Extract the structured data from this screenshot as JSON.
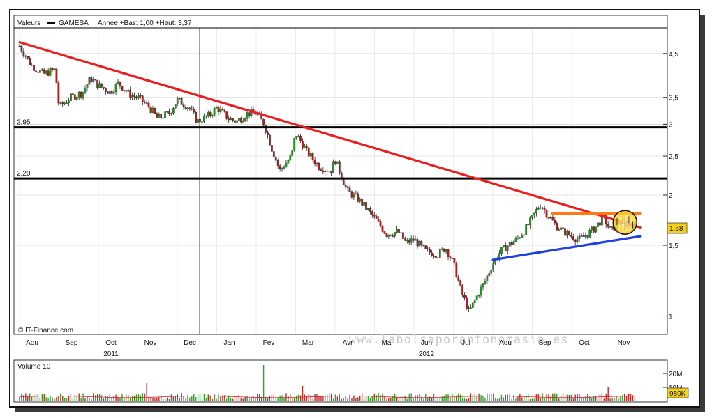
{
  "chart_data": [
    {
      "type": "candlestick",
      "legend": {
        "prefix": "Valeurs",
        "series_name": "GAMESA",
        "stats": "Année +Bas: 1,00 +Haut: 3,37"
      },
      "source": "© IT-Finance.com",
      "watermark": "www.labolsaporantonomasia.es",
      "y_scale": "log",
      "ylim": [
        0.9,
        5.6
      ],
      "y_ticks": [
        {
          "label": "4,5",
          "value": 4.5
        },
        {
          "label": "3,5",
          "value": 3.5
        },
        {
          "label": "3",
          "value": 3.0
        },
        {
          "label": "2,5",
          "value": 2.5
        },
        {
          "label": "2",
          "value": 2.0
        },
        {
          "label": "1,5",
          "value": 1.5
        },
        {
          "label": "1",
          "value": 1.0
        }
      ],
      "months": [
        "Aou",
        "Sep",
        "Oct",
        "Nov",
        "Dec",
        "Jan",
        "Fev",
        "Mar",
        "Avr",
        "Mai",
        "Jun",
        "Jul",
        "Aou",
        "Sep",
        "Oct",
        "Nov"
      ],
      "years": [
        {
          "label": "2011",
          "month_index": 2
        },
        {
          "label": "2012",
          "month_index": 10
        }
      ],
      "last_price": {
        "label": "1,68",
        "value": 1.68
      },
      "levels": [
        {
          "label": "2,95",
          "value": 2.95,
          "color": "#000000"
        },
        {
          "label": "2,20",
          "value": 2.2,
          "color": "#000000"
        }
      ],
      "trendlines": [
        {
          "name": "resistance",
          "color": "#ee1c1c",
          "from": {
            "month": 0.0,
            "value": 4.8
          },
          "to": {
            "month": 15.75,
            "value": 1.66
          }
        },
        {
          "name": "support",
          "color": "#1f3fe0",
          "from": {
            "month": 12.0,
            "value": 1.38
          },
          "to": {
            "month": 15.75,
            "value": 1.58
          }
        },
        {
          "name": "range-top",
          "color": "#ff7a14",
          "from": {
            "month": 13.5,
            "value": 1.8
          },
          "to": {
            "month": 15.75,
            "value": 1.8
          }
        }
      ],
      "highlight": {
        "month": 15.35,
        "value": 1.71,
        "color": "#f7d117"
      },
      "price_path": [
        {
          "m": 0.0,
          "v": 4.7
        },
        {
          "m": 0.3,
          "v": 4.2
        },
        {
          "m": 0.6,
          "v": 4.0
        },
        {
          "m": 0.9,
          "v": 4.1
        },
        {
          "m": 1.0,
          "v": 3.3
        },
        {
          "m": 1.3,
          "v": 3.5
        },
        {
          "m": 1.6,
          "v": 3.6
        },
        {
          "m": 1.8,
          "v": 3.9
        },
        {
          "m": 2.0,
          "v": 3.75
        },
        {
          "m": 2.3,
          "v": 3.6
        },
        {
          "m": 2.5,
          "v": 3.8
        },
        {
          "m": 2.8,
          "v": 3.55
        },
        {
          "m": 3.0,
          "v": 3.5
        },
        {
          "m": 3.3,
          "v": 3.3
        },
        {
          "m": 3.5,
          "v": 3.1
        },
        {
          "m": 3.8,
          "v": 3.2
        },
        {
          "m": 4.0,
          "v": 3.45
        },
        {
          "m": 4.3,
          "v": 3.3
        },
        {
          "m": 4.5,
          "v": 3.05
        },
        {
          "m": 4.8,
          "v": 3.15
        },
        {
          "m": 5.0,
          "v": 3.3
        },
        {
          "m": 5.3,
          "v": 3.1
        },
        {
          "m": 5.5,
          "v": 3.05
        },
        {
          "m": 5.8,
          "v": 3.2
        },
        {
          "m": 6.0,
          "v": 3.2
        },
        {
          "m": 6.2,
          "v": 3.0
        },
        {
          "m": 6.4,
          "v": 2.6
        },
        {
          "m": 6.6,
          "v": 2.3
        },
        {
          "m": 6.9,
          "v": 2.5
        },
        {
          "m": 7.0,
          "v": 2.85
        },
        {
          "m": 7.3,
          "v": 2.55
        },
        {
          "m": 7.6,
          "v": 2.35
        },
        {
          "m": 7.9,
          "v": 2.3
        },
        {
          "m": 8.0,
          "v": 2.45
        },
        {
          "m": 8.3,
          "v": 2.05
        },
        {
          "m": 8.6,
          "v": 1.95
        },
        {
          "m": 9.0,
          "v": 1.75
        },
        {
          "m": 9.3,
          "v": 1.6
        },
        {
          "m": 9.6,
          "v": 1.62
        },
        {
          "m": 9.8,
          "v": 1.52
        },
        {
          "m": 10.0,
          "v": 1.55
        },
        {
          "m": 10.3,
          "v": 1.45
        },
        {
          "m": 10.6,
          "v": 1.42
        },
        {
          "m": 10.8,
          "v": 1.48
        },
        {
          "m": 11.0,
          "v": 1.35
        },
        {
          "m": 11.2,
          "v": 1.15
        },
        {
          "m": 11.4,
          "v": 1.02
        },
        {
          "m": 11.6,
          "v": 1.12
        },
        {
          "m": 11.8,
          "v": 1.22
        },
        {
          "m": 12.0,
          "v": 1.35
        },
        {
          "m": 12.2,
          "v": 1.45
        },
        {
          "m": 12.4,
          "v": 1.5
        },
        {
          "m": 12.6,
          "v": 1.55
        },
        {
          "m": 12.8,
          "v": 1.63
        },
        {
          "m": 13.0,
          "v": 1.75
        },
        {
          "m": 13.2,
          "v": 1.9
        },
        {
          "m": 13.4,
          "v": 1.78
        },
        {
          "m": 13.6,
          "v": 1.68
        },
        {
          "m": 13.8,
          "v": 1.62
        },
        {
          "m": 14.0,
          "v": 1.58
        },
        {
          "m": 14.2,
          "v": 1.55
        },
        {
          "m": 14.4,
          "v": 1.6
        },
        {
          "m": 14.6,
          "v": 1.66
        },
        {
          "m": 14.8,
          "v": 1.76
        },
        {
          "m": 15.0,
          "v": 1.62
        },
        {
          "m": 15.2,
          "v": 1.72
        },
        {
          "m": 15.4,
          "v": 1.7
        },
        {
          "m": 15.6,
          "v": 1.68
        }
      ],
      "volume": {
        "label": "Volume 10",
        "y_ticks": [
          {
            "label": "20M",
            "value": 20
          },
          {
            "label": "10M",
            "value": 10
          }
        ],
        "last": "980K",
        "spikes": [
          {
            "month": 6.2,
            "value": 26
          },
          {
            "month": 3.2,
            "value": 13
          },
          {
            "month": 7.2,
            "value": 11
          },
          {
            "month": 14.9,
            "value": 10
          }
        ]
      }
    }
  ]
}
